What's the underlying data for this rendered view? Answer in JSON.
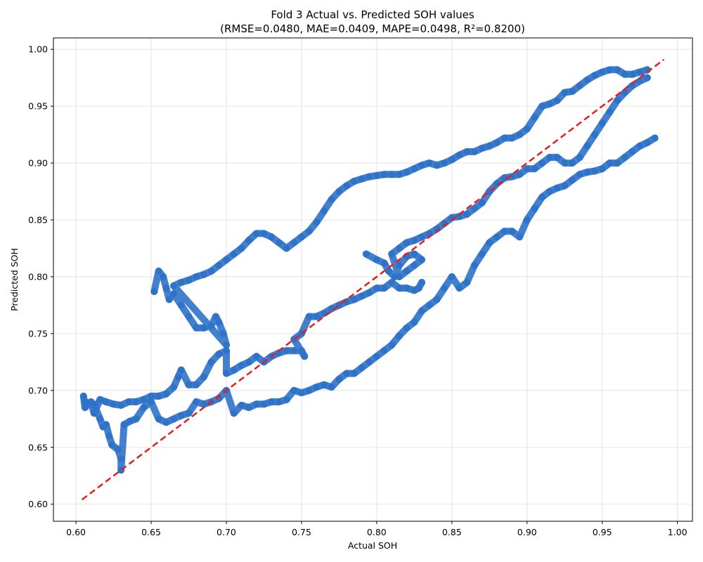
{
  "chart_data": {
    "type": "scatter",
    "title_line1": "Fold 3 Actual vs. Predicted SOH values",
    "title_line2": "(RMSE=0.0480, MAE=0.0409, MAPE=0.0498, R²=0.8200)",
    "xlabel": "Actual SOH",
    "ylabel": "Predicted SOH",
    "xlim": [
      0.585,
      1.01
    ],
    "ylim": [
      0.585,
      1.01
    ],
    "xticks": [
      0.6,
      0.65,
      0.7,
      0.75,
      0.8,
      0.85,
      0.9,
      0.95,
      1.0
    ],
    "yticks": [
      0.6,
      0.65,
      0.7,
      0.75,
      0.8,
      0.85,
      0.9,
      0.95,
      1.0
    ],
    "tick_labels_x": [
      "0.60",
      "0.65",
      "0.70",
      "0.75",
      "0.80",
      "0.85",
      "0.90",
      "0.95",
      "1.00"
    ],
    "tick_labels_y": [
      "0.60",
      "0.65",
      "0.70",
      "0.75",
      "0.80",
      "0.85",
      "0.90",
      "0.95",
      "1.00"
    ],
    "grid": true,
    "colors": {
      "points": "#2f73c9",
      "ideal_line": "#e81c1c"
    },
    "ideal_line": {
      "x": [
        0.604,
        0.991
      ],
      "y": [
        0.604,
        0.991
      ]
    },
    "series": [
      {
        "points": [
          [
            0.605,
            0.695
          ],
          [
            0.606,
            0.685
          ],
          [
            0.61,
            0.69
          ],
          [
            0.612,
            0.68
          ],
          [
            0.616,
            0.692
          ],
          [
            0.62,
            0.69
          ],
          [
            0.625,
            0.688
          ],
          [
            0.63,
            0.687
          ],
          [
            0.635,
            0.69
          ],
          [
            0.64,
            0.69
          ],
          [
            0.645,
            0.692
          ],
          [
            0.65,
            0.695
          ],
          [
            0.655,
            0.695
          ],
          [
            0.66,
            0.697
          ],
          [
            0.665,
            0.703
          ],
          [
            0.668,
            0.712
          ],
          [
            0.67,
            0.718
          ],
          [
            0.675,
            0.705
          ],
          [
            0.68,
            0.705
          ],
          [
            0.685,
            0.712
          ],
          [
            0.69,
            0.725
          ],
          [
            0.695,
            0.732
          ],
          [
            0.7,
            0.735
          ],
          [
            0.7,
            0.715
          ],
          [
            0.705,
            0.718
          ],
          [
            0.71,
            0.722
          ],
          [
            0.715,
            0.725
          ],
          [
            0.72,
            0.73
          ],
          [
            0.725,
            0.725
          ],
          [
            0.73,
            0.73
          ],
          [
            0.735,
            0.733
          ],
          [
            0.74,
            0.735
          ],
          [
            0.745,
            0.735
          ],
          [
            0.75,
            0.735
          ],
          [
            0.752,
            0.73
          ],
          [
            0.745,
            0.745
          ],
          [
            0.75,
            0.75
          ],
          [
            0.755,
            0.765
          ],
          [
            0.76,
            0.765
          ],
          [
            0.765,
            0.768
          ],
          [
            0.77,
            0.772
          ],
          [
            0.775,
            0.775
          ],
          [
            0.78,
            0.778
          ],
          [
            0.785,
            0.78
          ],
          [
            0.79,
            0.783
          ],
          [
            0.795,
            0.786
          ],
          [
            0.8,
            0.79
          ],
          [
            0.805,
            0.79
          ],
          [
            0.81,
            0.795
          ],
          [
            0.815,
            0.79
          ],
          [
            0.82,
            0.79
          ],
          [
            0.825,
            0.788
          ],
          [
            0.828,
            0.79
          ],
          [
            0.83,
            0.795
          ]
        ]
      },
      {
        "points": [
          [
            0.606,
            0.69
          ],
          [
            0.612,
            0.688
          ],
          [
            0.616,
            0.675
          ],
          [
            0.618,
            0.668
          ],
          [
            0.62,
            0.67
          ],
          [
            0.622,
            0.66
          ],
          [
            0.624,
            0.652
          ],
          [
            0.628,
            0.648
          ],
          [
            0.63,
            0.64
          ],
          [
            0.63,
            0.63
          ],
          [
            0.632,
            0.67
          ],
          [
            0.636,
            0.673
          ],
          [
            0.64,
            0.675
          ],
          [
            0.645,
            0.685
          ],
          [
            0.65,
            0.69
          ],
          [
            0.655,
            0.675
          ],
          [
            0.66,
            0.672
          ],
          [
            0.665,
            0.675
          ],
          [
            0.67,
            0.678
          ],
          [
            0.675,
            0.68
          ],
          [
            0.68,
            0.69
          ],
          [
            0.685,
            0.688
          ],
          [
            0.69,
            0.69
          ],
          [
            0.695,
            0.693
          ],
          [
            0.7,
            0.7
          ],
          [
            0.705,
            0.68
          ],
          [
            0.71,
            0.687
          ],
          [
            0.715,
            0.685
          ],
          [
            0.72,
            0.688
          ],
          [
            0.725,
            0.688
          ],
          [
            0.73,
            0.69
          ],
          [
            0.735,
            0.69
          ],
          [
            0.74,
            0.692
          ],
          [
            0.745,
            0.7
          ],
          [
            0.75,
            0.698
          ],
          [
            0.755,
            0.7
          ],
          [
            0.76,
            0.703
          ],
          [
            0.765,
            0.705
          ],
          [
            0.77,
            0.703
          ],
          [
            0.775,
            0.71
          ],
          [
            0.78,
            0.715
          ],
          [
            0.785,
            0.715
          ],
          [
            0.79,
            0.72
          ],
          [
            0.795,
            0.725
          ],
          [
            0.8,
            0.73
          ],
          [
            0.805,
            0.735
          ],
          [
            0.81,
            0.74
          ],
          [
            0.815,
            0.748
          ],
          [
            0.82,
            0.755
          ],
          [
            0.825,
            0.76
          ],
          [
            0.83,
            0.77
          ],
          [
            0.835,
            0.775
          ],
          [
            0.84,
            0.78
          ],
          [
            0.845,
            0.79
          ],
          [
            0.85,
            0.8
          ],
          [
            0.855,
            0.79
          ],
          [
            0.86,
            0.795
          ],
          [
            0.865,
            0.81
          ],
          [
            0.87,
            0.82
          ],
          [
            0.875,
            0.83
          ],
          [
            0.88,
            0.835
          ],
          [
            0.885,
            0.84
          ],
          [
            0.89,
            0.84
          ],
          [
            0.895,
            0.835
          ],
          [
            0.9,
            0.85
          ],
          [
            0.905,
            0.86
          ],
          [
            0.91,
            0.87
          ],
          [
            0.915,
            0.875
          ],
          [
            0.92,
            0.878
          ],
          [
            0.925,
            0.88
          ],
          [
            0.93,
            0.885
          ],
          [
            0.935,
            0.89
          ],
          [
            0.94,
            0.892
          ],
          [
            0.945,
            0.893
          ],
          [
            0.95,
            0.895
          ],
          [
            0.955,
            0.9
          ],
          [
            0.96,
            0.9
          ],
          [
            0.965,
            0.905
          ],
          [
            0.97,
            0.91
          ],
          [
            0.975,
            0.915
          ],
          [
            0.98,
            0.918
          ],
          [
            0.985,
            0.922
          ]
        ]
      },
      {
        "points": [
          [
            0.652,
            0.787
          ],
          [
            0.655,
            0.805
          ],
          [
            0.658,
            0.8
          ],
          [
            0.66,
            0.79
          ],
          [
            0.662,
            0.78
          ],
          [
            0.665,
            0.785
          ],
          [
            0.67,
            0.775
          ],
          [
            0.675,
            0.765
          ],
          [
            0.68,
            0.755
          ],
          [
            0.685,
            0.755
          ],
          [
            0.69,
            0.757
          ],
          [
            0.693,
            0.765
          ],
          [
            0.695,
            0.76
          ],
          [
            0.698,
            0.75
          ],
          [
            0.7,
            0.74
          ],
          [
            0.665,
            0.792
          ],
          [
            0.67,
            0.795
          ],
          [
            0.675,
            0.797
          ],
          [
            0.68,
            0.8
          ],
          [
            0.685,
            0.802
          ],
          [
            0.69,
            0.805
          ],
          [
            0.695,
            0.81
          ],
          [
            0.7,
            0.815
          ],
          [
            0.705,
            0.82
          ],
          [
            0.71,
            0.825
          ],
          [
            0.715,
            0.832
          ],
          [
            0.72,
            0.838
          ],
          [
            0.725,
            0.838
          ],
          [
            0.73,
            0.835
          ],
          [
            0.735,
            0.83
          ],
          [
            0.74,
            0.825
          ],
          [
            0.745,
            0.83
          ],
          [
            0.75,
            0.835
          ],
          [
            0.755,
            0.84
          ],
          [
            0.76,
            0.848
          ],
          [
            0.765,
            0.858
          ],
          [
            0.77,
            0.868
          ],
          [
            0.775,
            0.875
          ],
          [
            0.78,
            0.88
          ],
          [
            0.785,
            0.884
          ],
          [
            0.79,
            0.886
          ],
          [
            0.795,
            0.888
          ],
          [
            0.8,
            0.889
          ],
          [
            0.805,
            0.89
          ],
          [
            0.81,
            0.89
          ],
          [
            0.815,
            0.89
          ],
          [
            0.82,
            0.892
          ],
          [
            0.825,
            0.895
          ],
          [
            0.83,
            0.898
          ],
          [
            0.835,
            0.9
          ],
          [
            0.84,
            0.898
          ],
          [
            0.845,
            0.9
          ],
          [
            0.85,
            0.903
          ],
          [
            0.855,
            0.907
          ],
          [
            0.86,
            0.91
          ],
          [
            0.865,
            0.91
          ],
          [
            0.87,
            0.913
          ],
          [
            0.875,
            0.915
          ],
          [
            0.88,
            0.918
          ],
          [
            0.885,
            0.922
          ],
          [
            0.89,
            0.922
          ],
          [
            0.895,
            0.925
          ],
          [
            0.9,
            0.93
          ],
          [
            0.905,
            0.94
          ],
          [
            0.91,
            0.95
          ],
          [
            0.915,
            0.952
          ],
          [
            0.92,
            0.955
          ],
          [
            0.925,
            0.962
          ],
          [
            0.93,
            0.963
          ],
          [
            0.935,
            0.968
          ],
          [
            0.94,
            0.973
          ],
          [
            0.945,
            0.977
          ],
          [
            0.95,
            0.98
          ],
          [
            0.955,
            0.982
          ],
          [
            0.96,
            0.982
          ],
          [
            0.965,
            0.978
          ],
          [
            0.97,
            0.978
          ],
          [
            0.975,
            0.98
          ],
          [
            0.98,
            0.982
          ]
        ]
      },
      {
        "points": [
          [
            0.793,
            0.82
          ],
          [
            0.8,
            0.815
          ],
          [
            0.805,
            0.812
          ],
          [
            0.808,
            0.805
          ],
          [
            0.812,
            0.8
          ],
          [
            0.815,
            0.81
          ],
          [
            0.82,
            0.818
          ],
          [
            0.825,
            0.82
          ],
          [
            0.83,
            0.815
          ],
          [
            0.825,
            0.81
          ],
          [
            0.82,
            0.805
          ],
          [
            0.815,
            0.8
          ],
          [
            0.81,
            0.82
          ],
          [
            0.815,
            0.825
          ],
          [
            0.82,
            0.83
          ],
          [
            0.825,
            0.832
          ],
          [
            0.83,
            0.835
          ],
          [
            0.835,
            0.838
          ],
          [
            0.84,
            0.842
          ],
          [
            0.845,
            0.847
          ],
          [
            0.85,
            0.852
          ],
          [
            0.855,
            0.853
          ],
          [
            0.86,
            0.855
          ],
          [
            0.865,
            0.86
          ],
          [
            0.87,
            0.865
          ],
          [
            0.875,
            0.875
          ],
          [
            0.88,
            0.882
          ],
          [
            0.885,
            0.887
          ],
          [
            0.89,
            0.888
          ],
          [
            0.895,
            0.89
          ],
          [
            0.9,
            0.895
          ],
          [
            0.905,
            0.895
          ],
          [
            0.91,
            0.9
          ],
          [
            0.915,
            0.905
          ],
          [
            0.92,
            0.905
          ],
          [
            0.925,
            0.9
          ],
          [
            0.93,
            0.9
          ],
          [
            0.935,
            0.905
          ],
          [
            0.94,
            0.915
          ],
          [
            0.945,
            0.925
          ],
          [
            0.95,
            0.935
          ],
          [
            0.955,
            0.945
          ],
          [
            0.96,
            0.955
          ],
          [
            0.965,
            0.962
          ],
          [
            0.97,
            0.968
          ],
          [
            0.975,
            0.972
          ],
          [
            0.98,
            0.975
          ]
        ]
      }
    ]
  }
}
